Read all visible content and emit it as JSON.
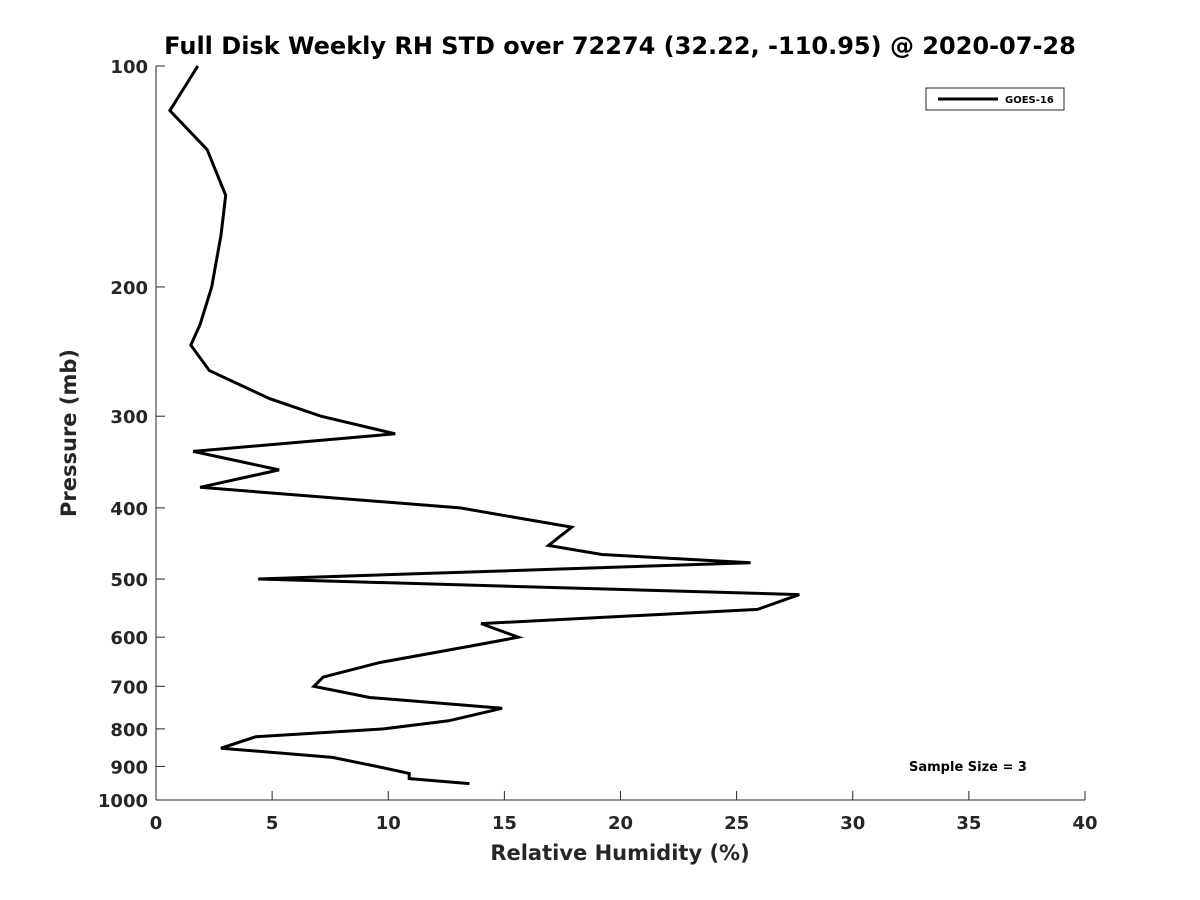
{
  "chart_data": {
    "type": "line",
    "title": "Full Disk Weekly RH STD over 72274 (32.22, -110.95) @ 2020-07-28",
    "xlabel": "Relative Humidity (%)",
    "ylabel": "Pressure (mb)",
    "xlim": [
      0,
      40
    ],
    "ylim": [
      100,
      1000
    ],
    "yscale": "log",
    "yreversed": true,
    "xticks": [
      0,
      5,
      10,
      15,
      20,
      25,
      30,
      35,
      40
    ],
    "yticks": [
      100,
      200,
      300,
      400,
      500,
      600,
      700,
      800,
      900,
      1000
    ],
    "legend": {
      "position": "top-right",
      "entries": [
        "GOES-16"
      ]
    },
    "annotation": "Sample Size = 3",
    "series": [
      {
        "name": "GOES-16",
        "color": "#000000",
        "points": [
          [
            1.8,
            100
          ],
          [
            0.6,
            115
          ],
          [
            2.2,
            130
          ],
          [
            3.0,
            150
          ],
          [
            2.8,
            170
          ],
          [
            2.4,
            200
          ],
          [
            1.9,
            225
          ],
          [
            1.5,
            240
          ],
          [
            2.3,
            260
          ],
          [
            4.9,
            284
          ],
          [
            7.1,
            300
          ],
          [
            10.3,
            317
          ],
          [
            1.6,
            335
          ],
          [
            5.3,
            355
          ],
          [
            1.9,
            375
          ],
          [
            13.1,
            400
          ],
          [
            17.9,
            425
          ],
          [
            16.9,
            450
          ],
          [
            19.2,
            463
          ],
          [
            25.6,
            475
          ],
          [
            4.4,
            500
          ],
          [
            27.7,
            525
          ],
          [
            25.9,
            550
          ],
          [
            14.0,
            575
          ],
          [
            15.6,
            600
          ],
          [
            13.8,
            615
          ],
          [
            9.6,
            650
          ],
          [
            7.2,
            680
          ],
          [
            6.8,
            700
          ],
          [
            9.2,
            725
          ],
          [
            14.9,
            750
          ],
          [
            12.6,
            780
          ],
          [
            9.8,
            800
          ],
          [
            4.3,
            820
          ],
          [
            2.8,
            850
          ],
          [
            7.6,
            875
          ],
          [
            9.5,
            900
          ],
          [
            10.9,
            920
          ],
          [
            10.9,
            935
          ],
          [
            13.5,
            950
          ]
        ]
      }
    ]
  }
}
